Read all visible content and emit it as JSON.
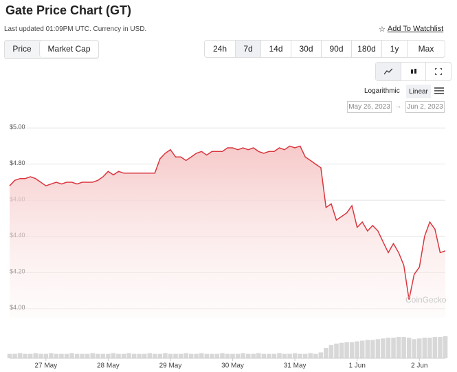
{
  "header": {
    "title": "Gate Price Chart (GT)",
    "updated": "Last updated 01:09PM UTC. Currency in USD.",
    "watchlist": "Add To Watchlist",
    "watchlist_icon": "☆"
  },
  "tabs": [
    "Price",
    "Market Cap"
  ],
  "ranges": [
    "24h",
    "7d",
    "14d",
    "30d",
    "90d",
    "180d",
    "1y",
    "Max"
  ],
  "selected_range": 1,
  "scales": [
    "Logarithmic",
    "Linear"
  ],
  "date_from": "May 26, 2023",
  "date_arrow": "→",
  "date_to": "Jun 2, 2023",
  "watermark": "CoinGecko",
  "chart_data": {
    "type": "area",
    "color": "#d9363e",
    "ylim": [
      3.95,
      5.05
    ],
    "yticks": [
      {
        "value": 5,
        "label": "$5.00"
      },
      {
        "value": 4.8,
        "label": "$4.80"
      },
      {
        "value": 4.6,
        "label": "$4.60"
      },
      {
        "value": 4.4,
        "label": "$4.40"
      },
      {
        "value": 4.2,
        "label": "$4.20"
      },
      {
        "value": 4,
        "label": "$4.00"
      }
    ],
    "grid": true,
    "categories": [
      null,
      null,
      null,
      null,
      null,
      null,
      null,
      "27 May",
      null,
      null,
      null,
      null,
      null,
      null,
      null,
      null,
      null,
      null,
      null,
      "28 May",
      null,
      null,
      null,
      null,
      null,
      null,
      null,
      null,
      null,
      null,
      null,
      "29 May",
      null,
      null,
      null,
      null,
      null,
      null,
      null,
      null,
      null,
      null,
      null,
      "30 May",
      null,
      null,
      null,
      null,
      null,
      null,
      null,
      null,
      null,
      null,
      null,
      "31 May",
      null,
      null,
      null,
      null,
      null,
      null,
      null,
      null,
      null,
      null,
      null,
      "1 Jun",
      null,
      null,
      null,
      null,
      null,
      null,
      null,
      null,
      null,
      null,
      null,
      "2 Jun",
      null,
      null,
      null,
      null,
      null
    ],
    "values": [
      4.68,
      4.71,
      4.72,
      4.72,
      4.73,
      4.72,
      4.7,
      4.68,
      4.69,
      4.7,
      4.69,
      4.7,
      4.7,
      4.69,
      4.7,
      4.7,
      4.7,
      4.71,
      4.73,
      4.76,
      4.74,
      4.76,
      4.75,
      4.75,
      4.75,
      4.75,
      4.75,
      4.75,
      4.75,
      4.83,
      4.86,
      4.88,
      4.84,
      4.84,
      4.82,
      4.84,
      4.86,
      4.87,
      4.85,
      4.87,
      4.87,
      4.87,
      4.89,
      4.89,
      4.88,
      4.89,
      4.88,
      4.89,
      4.87,
      4.86,
      4.87,
      4.87,
      4.89,
      4.88,
      4.9,
      4.89,
      4.9,
      4.84,
      4.82,
      4.8,
      4.78,
      4.56,
      4.58,
      4.49,
      4.51,
      4.53,
      4.57,
      4.45,
      4.48,
      4.43,
      4.46,
      4.43,
      4.37,
      4.31,
      4.36,
      4.31,
      4.24,
      4.05,
      4.19,
      4.23,
      4.4,
      4.48,
      4.44,
      4.31,
      4.32
    ],
    "volume": [
      6,
      6,
      7,
      6,
      6,
      7,
      6,
      6,
      7,
      6,
      6,
      6,
      7,
      6,
      6,
      6,
      7,
      6,
      6,
      6,
      7,
      6,
      6,
      7,
      6,
      6,
      6,
      7,
      6,
      6,
      7,
      6,
      6,
      6,
      7,
      6,
      6,
      7,
      6,
      6,
      6,
      7,
      6,
      6,
      6,
      7,
      6,
      6,
      7,
      6,
      6,
      6,
      7,
      6,
      6,
      7,
      6,
      6,
      7,
      6,
      8,
      14,
      18,
      20,
      21,
      22,
      22,
      23,
      24,
      25,
      25,
      26,
      27,
      28,
      28,
      29,
      29,
      28,
      26,
      27,
      28,
      28,
      29,
      29,
      30
    ]
  }
}
